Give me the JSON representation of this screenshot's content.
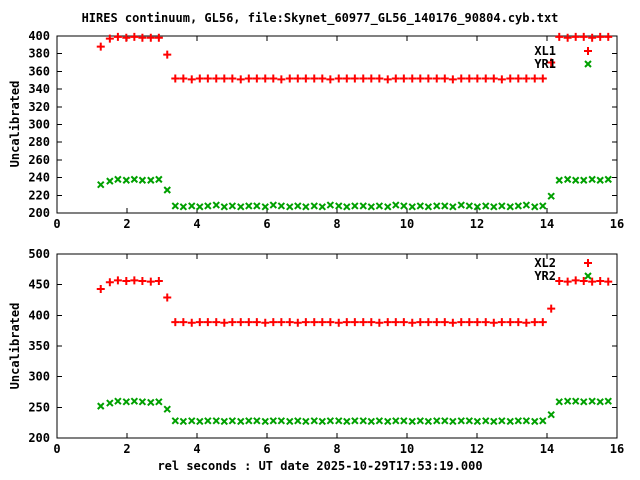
{
  "title": "HIRES continuum, GL56, file:Skynet_60977_GL56_140176_90804.cyb.txt",
  "colors": {
    "red": "#ff0000",
    "green": "#00a000",
    "foreground": "#000000",
    "background": "#ffffff"
  },
  "chart_data": [
    {
      "type": "scatter",
      "ylabel": "Uncalibrated",
      "xlabel": "",
      "xlim": [
        0,
        16
      ],
      "ylim": [
        200,
        400
      ],
      "xticks": [
        0,
        2,
        4,
        6,
        8,
        10,
        12,
        14,
        16
      ],
      "yticks": [
        200,
        220,
        240,
        260,
        280,
        300,
        320,
        340,
        360,
        380,
        400
      ],
      "grid": false,
      "legend_position": "top-right-inside",
      "x": [
        1.25,
        1.51,
        1.74,
        1.98,
        2.21,
        2.44,
        2.68,
        2.91,
        3.15,
        3.38,
        3.61,
        3.85,
        4.08,
        4.31,
        4.55,
        4.78,
        5.01,
        5.25,
        5.48,
        5.71,
        5.95,
        6.18,
        6.41,
        6.65,
        6.88,
        7.11,
        7.35,
        7.58,
        7.81,
        8.05,
        8.28,
        8.51,
        8.75,
        8.98,
        9.21,
        9.45,
        9.68,
        9.91,
        10.15,
        10.38,
        10.61,
        10.85,
        11.08,
        11.31,
        11.55,
        11.78,
        12.01,
        12.25,
        12.48,
        12.71,
        12.95,
        13.18,
        13.41,
        13.65,
        13.88,
        14.12,
        14.35,
        14.59,
        14.82,
        15.05,
        15.29,
        15.52,
        15.75
      ],
      "series": [
        {
          "name": "XL1",
          "marker": "plus",
          "color": "#ff0000",
          "values": [
            388,
            397,
            399,
            398,
            399,
            398,
            398,
            398,
            379,
            352,
            352,
            351,
            352,
            352,
            352,
            352,
            352,
            351,
            352,
            352,
            352,
            352,
            351,
            352,
            352,
            352,
            352,
            352,
            351,
            352,
            352,
            352,
            352,
            352,
            352,
            351,
            352,
            352,
            352,
            352,
            352,
            352,
            352,
            351,
            352,
            352,
            352,
            352,
            352,
            351,
            352,
            352,
            352,
            352,
            352,
            370,
            399,
            398,
            399,
            399,
            398,
            399,
            399
          ]
        },
        {
          "name": "YR1",
          "marker": "cross",
          "color": "#00a000",
          "values": [
            232,
            236,
            238,
            237,
            238,
            237,
            237,
            238,
            226,
            208,
            207,
            208,
            207,
            208,
            209,
            207,
            208,
            207,
            208,
            208,
            207,
            209,
            208,
            207,
            208,
            207,
            208,
            207,
            209,
            208,
            207,
            208,
            208,
            207,
            208,
            207,
            209,
            208,
            207,
            208,
            207,
            208,
            208,
            207,
            209,
            208,
            207,
            208,
            207,
            208,
            207,
            208,
            209,
            207,
            208,
            219,
            237,
            238,
            237,
            237,
            238,
            237,
            238
          ]
        }
      ]
    },
    {
      "type": "scatter",
      "ylabel": "Uncalibrated",
      "xlabel": "rel seconds : UT date 2025-10-29T17:53:19.000",
      "xlim": [
        0,
        16
      ],
      "ylim": [
        200,
        500
      ],
      "xticks": [
        0,
        2,
        4,
        6,
        8,
        10,
        12,
        14,
        16
      ],
      "yticks": [
        200,
        250,
        300,
        350,
        400,
        450,
        500
      ],
      "grid": false,
      "legend_position": "top-right-inside",
      "x": [
        1.25,
        1.51,
        1.74,
        1.98,
        2.21,
        2.44,
        2.68,
        2.91,
        3.15,
        3.38,
        3.61,
        3.85,
        4.08,
        4.31,
        4.55,
        4.78,
        5.01,
        5.25,
        5.48,
        5.71,
        5.95,
        6.18,
        6.41,
        6.65,
        6.88,
        7.11,
        7.35,
        7.58,
        7.81,
        8.05,
        8.28,
        8.51,
        8.75,
        8.98,
        9.21,
        9.45,
        9.68,
        9.91,
        10.15,
        10.38,
        10.61,
        10.85,
        11.08,
        11.31,
        11.55,
        11.78,
        12.01,
        12.25,
        12.48,
        12.71,
        12.95,
        13.18,
        13.41,
        13.65,
        13.88,
        14.12,
        14.35,
        14.59,
        14.82,
        15.05,
        15.29,
        15.52,
        15.75
      ],
      "series": [
        {
          "name": "XL2",
          "marker": "plus",
          "color": "#ff0000",
          "values": [
            443,
            454,
            457,
            456,
            457,
            456,
            455,
            456,
            429,
            389,
            389,
            388,
            389,
            389,
            389,
            388,
            389,
            389,
            389,
            389,
            388,
            389,
            389,
            389,
            388,
            389,
            389,
            389,
            389,
            388,
            389,
            389,
            389,
            389,
            388,
            389,
            389,
            389,
            388,
            389,
            389,
            389,
            389,
            388,
            389,
            389,
            389,
            389,
            388,
            389,
            389,
            389,
            388,
            389,
            389,
            411,
            456,
            455,
            457,
            456,
            455,
            456,
            455
          ]
        },
        {
          "name": "YR2",
          "marker": "cross",
          "color": "#00a000",
          "values": [
            252,
            257,
            260,
            259,
            260,
            259,
            258,
            259,
            247,
            228,
            227,
            228,
            227,
            228,
            228,
            227,
            228,
            227,
            228,
            228,
            227,
            228,
            228,
            227,
            228,
            227,
            228,
            227,
            228,
            228,
            227,
            228,
            228,
            227,
            228,
            227,
            228,
            228,
            227,
            228,
            227,
            228,
            228,
            227,
            228,
            228,
            227,
            228,
            227,
            228,
            227,
            228,
            228,
            227,
            228,
            238,
            259,
            260,
            260,
            259,
            260,
            259,
            260
          ]
        }
      ]
    }
  ]
}
